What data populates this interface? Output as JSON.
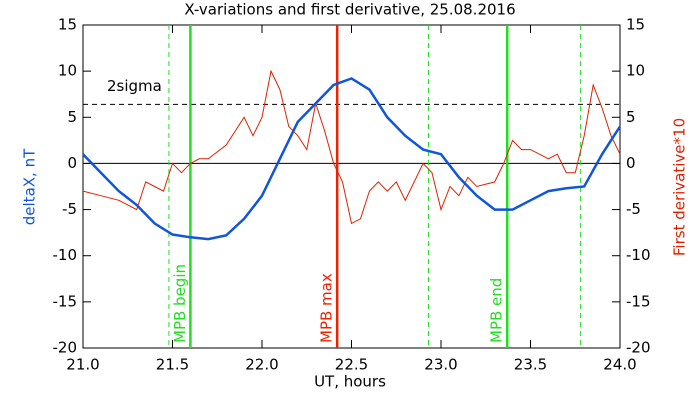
{
  "chart_data": {
    "type": "line",
    "title": "X-variations and first derivative, 25.08.2016",
    "x_label": "UT, hours",
    "y_label": "deltaX, nT",
    "y2_label": "First derivative*10",
    "xlim": [
      21,
      24
    ],
    "xticks": [
      {
        "value": 21,
        "label": "21.0"
      },
      {
        "value": 21.5,
        "label": "21.5"
      },
      {
        "value": 22,
        "label": "22.0"
      },
      {
        "value": 22.5,
        "label": "22.5"
      },
      {
        "value": 23,
        "label": "23.0"
      },
      {
        "value": 23.5,
        "label": "23.5"
      },
      {
        "value": 24,
        "label": "24.0"
      }
    ],
    "ylim": [
      -20,
      15
    ],
    "yticks": [
      -20,
      -15,
      -10,
      -5,
      0,
      5,
      10,
      15
    ],
    "y2lim": [
      -20,
      15
    ],
    "y2ticks": [
      -20,
      -15,
      -10,
      -5,
      0,
      5,
      10,
      15
    ],
    "series": [
      {
        "name": "deltaX",
        "color": "#1155dd",
        "x": [
          21.0,
          21.1,
          21.2,
          21.3,
          21.4,
          21.5,
          21.6,
          21.7,
          21.8,
          21.9,
          22.0,
          22.1,
          22.2,
          22.3,
          22.4,
          22.5,
          22.6,
          22.7,
          22.8,
          22.9,
          23.0,
          23.1,
          23.2,
          23.3,
          23.4,
          23.5,
          23.6,
          23.7,
          23.8,
          23.9,
          24.0
        ],
        "values": [
          1,
          -1,
          -3,
          -4.5,
          -6.5,
          -7.7,
          -8,
          -8.2,
          -7.8,
          -6,
          -3.5,
          0.5,
          4.5,
          6.5,
          8.5,
          9.2,
          8,
          5,
          3,
          1.5,
          1,
          -1.5,
          -3.5,
          -5,
          -5,
          -4,
          -3,
          -2.7,
          -2.5,
          1,
          4
        ]
      },
      {
        "name": "First derivative*10",
        "color": "#dd2200",
        "axis": "y2",
        "x": [
          21.0,
          21.1,
          21.2,
          21.3,
          21.35,
          21.45,
          21.5,
          21.55,
          21.6,
          21.65,
          21.7,
          21.8,
          21.9,
          21.95,
          22.0,
          22.05,
          22.1,
          22.15,
          22.2,
          22.25,
          22.3,
          22.35,
          22.4,
          22.45,
          22.5,
          22.55,
          22.6,
          22.65,
          22.7,
          22.75,
          22.8,
          22.85,
          22.9,
          22.95,
          23.0,
          23.05,
          23.1,
          23.15,
          23.2,
          23.3,
          23.35,
          23.4,
          23.45,
          23.5,
          23.55,
          23.6,
          23.65,
          23.7,
          23.75,
          23.8,
          23.85,
          23.9,
          23.95,
          24.0
        ],
        "values": [
          -3,
          -3.5,
          -4,
          -5,
          -2,
          -3,
          0,
          -1,
          0,
          0.5,
          0.5,
          2,
          5,
          3,
          5,
          10,
          8,
          4,
          3,
          1.5,
          6.5,
          3.5,
          0,
          -2,
          -6.5,
          -6,
          -3,
          -2,
          -3,
          -2,
          -4,
          -2,
          0,
          -1,
          -5,
          -2.5,
          -3.5,
          -1.5,
          -2.5,
          -2,
          0,
          2.5,
          1.5,
          1.5,
          1,
          0.5,
          1,
          -1,
          -1,
          3,
          8.5,
          6,
          3,
          1
        ]
      }
    ],
    "hlines": [
      {
        "value": 0,
        "color": "#000000"
      }
    ],
    "threshold": {
      "value": 6.4,
      "label": "2sigma",
      "color": "#000000"
    },
    "markers": [
      {
        "x": 21.48,
        "color": "#22dd22",
        "style": "dashed"
      },
      {
        "x": 21.6,
        "color": "#22dd22",
        "style": "solid",
        "label": "MPB begin"
      },
      {
        "x": 22.42,
        "color": "#ee2200",
        "style": "solid",
        "label": "MPB max"
      },
      {
        "x": 22.93,
        "color": "#22dd22",
        "style": "dashed"
      },
      {
        "x": 23.37,
        "color": "#22dd22",
        "style": "solid",
        "label": "MPB end"
      },
      {
        "x": 23.78,
        "color": "#22dd22",
        "style": "dashed"
      }
    ]
  }
}
